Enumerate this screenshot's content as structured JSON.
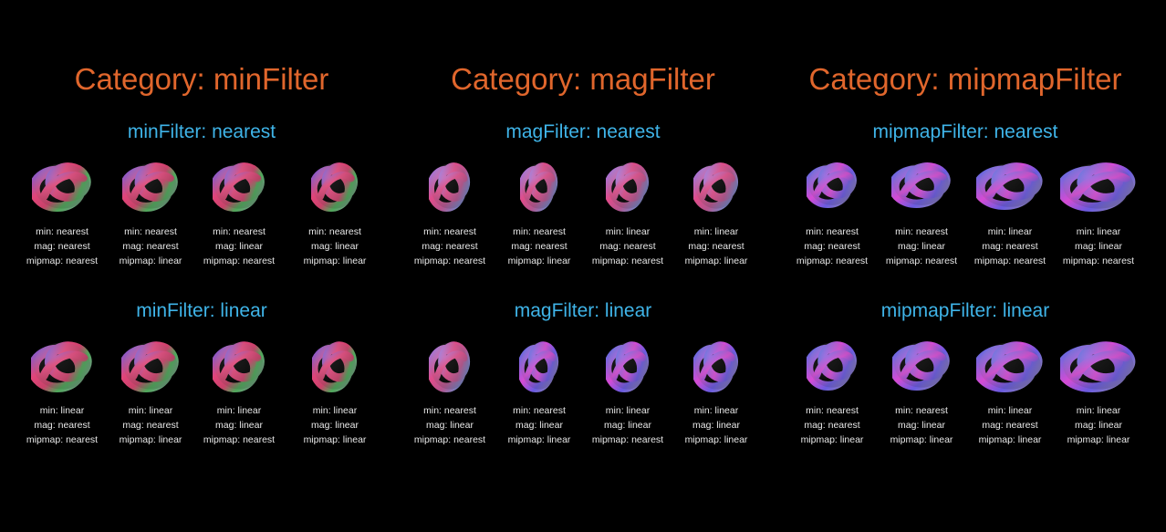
{
  "colors": {
    "background": "#000000",
    "category_title": "#e0662c",
    "group_title": "#3fb4e8",
    "label_text": "#e8e8e8"
  },
  "categories": [
    {
      "title": "Category: minFilter",
      "groups": [
        {
          "title": "minFilter: nearest",
          "items": [
            {
              "min": "min: nearest",
              "mag": "mag: nearest",
              "mipmap": "mipmap: nearest",
              "icon": "torus-knot-icon"
            },
            {
              "min": "min: nearest",
              "mag": "mag: nearest",
              "mipmap": "mipmap: linear",
              "icon": "torus-knot-icon"
            },
            {
              "min": "min: nearest",
              "mag": "mag: linear",
              "mipmap": "mipmap: nearest",
              "icon": "torus-knot-icon"
            },
            {
              "min": "min: nearest",
              "mag": "mag: linear",
              "mipmap": "mipmap: linear",
              "icon": "torus-knot-icon"
            }
          ]
        },
        {
          "title": "minFilter: linear",
          "items": [
            {
              "min": "min: linear",
              "mag": "mag: nearest",
              "mipmap": "mipmap: nearest",
              "icon": "torus-knot-icon"
            },
            {
              "min": "min: linear",
              "mag": "mag: nearest",
              "mipmap": "mipmap: linear",
              "icon": "torus-knot-icon"
            },
            {
              "min": "min: linear",
              "mag": "mag: linear",
              "mipmap": "mipmap: nearest",
              "icon": "torus-knot-icon"
            },
            {
              "min": "min: linear",
              "mag": "mag: linear",
              "mipmap": "mipmap: linear",
              "icon": "torus-knot-icon"
            }
          ]
        }
      ]
    },
    {
      "title": "Category: magFilter",
      "groups": [
        {
          "title": "magFilter: nearest",
          "items": [
            {
              "min": "min: nearest",
              "mag": "mag: nearest",
              "mipmap": "mipmap: nearest",
              "icon": "torus-knot-icon"
            },
            {
              "min": "min: nearest",
              "mag": "mag: nearest",
              "mipmap": "mipmap: linear",
              "icon": "torus-knot-icon"
            },
            {
              "min": "min: linear",
              "mag": "mag: nearest",
              "mipmap": "mipmap: nearest",
              "icon": "torus-knot-icon"
            },
            {
              "min": "min: linear",
              "mag": "mag: nearest",
              "mipmap": "mipmap: linear",
              "icon": "torus-knot-icon"
            }
          ]
        },
        {
          "title": "magFilter: linear",
          "items": [
            {
              "min": "min: nearest",
              "mag": "mag: linear",
              "mipmap": "mipmap: nearest",
              "icon": "torus-knot-icon"
            },
            {
              "min": "min: nearest",
              "mag": "mag: linear",
              "mipmap": "mipmap: linear",
              "icon": "torus-knot-icon"
            },
            {
              "min": "min: linear",
              "mag": "mag: linear",
              "mipmap": "mipmap: nearest",
              "icon": "torus-knot-icon"
            },
            {
              "min": "min: linear",
              "mag": "mag: linear",
              "mipmap": "mipmap: linear",
              "icon": "torus-knot-icon"
            }
          ]
        }
      ]
    },
    {
      "title": "Category: mipmapFilter",
      "groups": [
        {
          "title": "mipmapFilter: nearest",
          "items": [
            {
              "min": "min: nearest",
              "mag": "mag: nearest",
              "mipmap": "mipmap: nearest",
              "icon": "torus-knot-icon"
            },
            {
              "min": "min: nearest",
              "mag": "mag: linear",
              "mipmap": "mipmap: nearest",
              "icon": "torus-knot-icon"
            },
            {
              "min": "min: linear",
              "mag": "mag: nearest",
              "mipmap": "mipmap: nearest",
              "icon": "torus-knot-icon"
            },
            {
              "min": "min: linear",
              "mag": "mag: linear",
              "mipmap": "mipmap: nearest",
              "icon": "torus-knot-icon"
            }
          ]
        },
        {
          "title": "mipmapFilter: linear",
          "items": [
            {
              "min": "min: nearest",
              "mag": "mag: nearest",
              "mipmap": "mipmap: linear",
              "icon": "torus-knot-icon"
            },
            {
              "min": "min: nearest",
              "mag": "mag: linear",
              "mipmap": "mipmap: linear",
              "icon": "torus-knot-icon"
            },
            {
              "min": "min: linear",
              "mag": "mag: nearest",
              "mipmap": "mipmap: linear",
              "icon": "torus-knot-icon"
            },
            {
              "min": "min: linear",
              "mag": "mag: linear",
              "mipmap": "mipmap: linear",
              "icon": "torus-knot-icon"
            }
          ]
        }
      ]
    }
  ]
}
